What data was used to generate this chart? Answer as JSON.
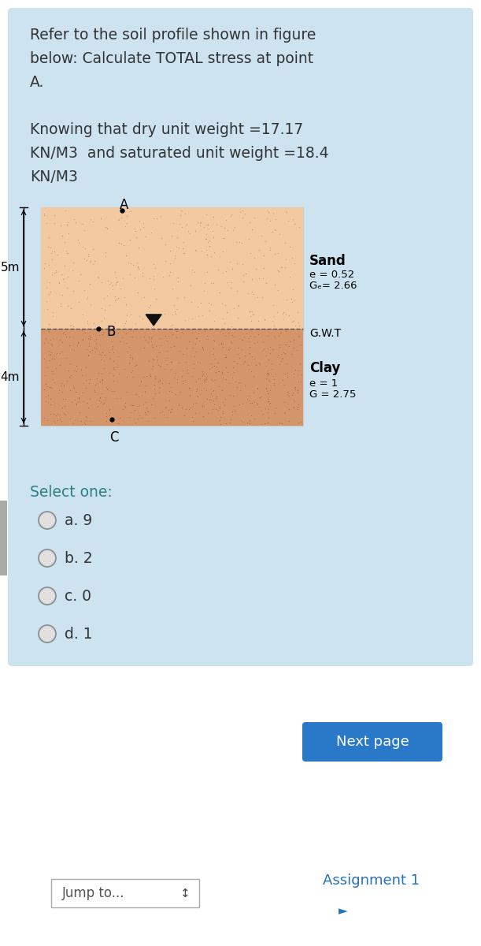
{
  "bg_color": "#ffffff",
  "card_color": "#cde4f0",
  "question_lines": [
    "Refer to the soil profile shown in figure",
    "below: Calculate TOTAL stress at point",
    "A.",
    "",
    "Knowing that dry unit weight =17.17",
    "KN/M3  and saturated unit weight =18.4",
    "KN/M3"
  ],
  "sand_color": "#f2c9a0",
  "clay_color": "#d4956a",
  "sand_label": "Sand",
  "clay_label": "Clay",
  "sand_e": "e = 0.52",
  "sand_G": "Gₑ= 2.66",
  "gwt_label": "G.W.T",
  "clay_e": "e = 1",
  "clay_G": "G = 2.75",
  "dim_5m": "5m",
  "dim_4m": "4m",
  "point_A": "A",
  "point_B": "B",
  "point_C": "C",
  "select_one": "Select one:",
  "options": [
    "a. 9",
    "b. 2",
    "c. 0",
    "d. 1"
  ],
  "next_page_text": "Next page",
  "next_page_color": "#2979c8",
  "jump_to_text": "Jump to...",
  "assignment_text": "Assignment 1",
  "assignment_color": "#2571bb",
  "text_color": "#333333",
  "teal_color": "#2e7d8a",
  "diagram_bg": "#ffffff"
}
